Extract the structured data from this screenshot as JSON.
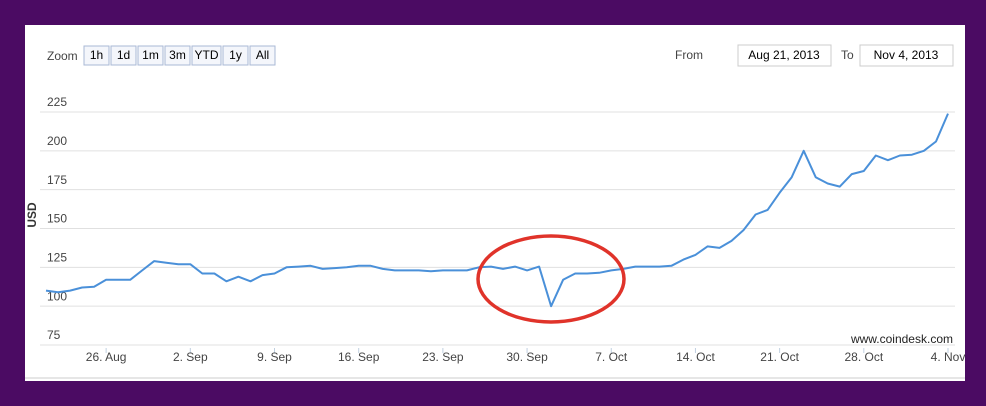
{
  "zoom": {
    "label": "Zoom",
    "buttons": [
      "1h",
      "1d",
      "1m",
      "3m",
      "YTD",
      "1y",
      "All"
    ]
  },
  "range": {
    "from_label": "From",
    "from": "Aug 21, 2013",
    "to_label": "To",
    "to": "Nov 4, 2013"
  },
  "chart_data": {
    "type": "line",
    "y_label": "USD",
    "credit": "www.coindesk.com",
    "x": [
      "2013-08-21",
      "2013-08-22",
      "2013-08-23",
      "2013-08-24",
      "2013-08-25",
      "2013-08-26",
      "2013-08-27",
      "2013-08-28",
      "2013-08-29",
      "2013-08-30",
      "2013-08-31",
      "2013-09-01",
      "2013-09-02",
      "2013-09-03",
      "2013-09-04",
      "2013-09-05",
      "2013-09-06",
      "2013-09-07",
      "2013-09-08",
      "2013-09-09",
      "2013-09-10",
      "2013-09-11",
      "2013-09-12",
      "2013-09-13",
      "2013-09-14",
      "2013-09-15",
      "2013-09-16",
      "2013-09-17",
      "2013-09-18",
      "2013-09-19",
      "2013-09-20",
      "2013-09-21",
      "2013-09-22",
      "2013-09-23",
      "2013-09-24",
      "2013-09-25",
      "2013-09-26",
      "2013-09-27",
      "2013-09-28",
      "2013-09-29",
      "2013-09-30",
      "2013-10-01",
      "2013-10-02",
      "2013-10-03",
      "2013-10-04",
      "2013-10-05",
      "2013-10-06",
      "2013-10-07",
      "2013-10-08",
      "2013-10-09",
      "2013-10-10",
      "2013-10-11",
      "2013-10-12",
      "2013-10-13",
      "2013-10-14",
      "2013-10-15",
      "2013-10-16",
      "2013-10-17",
      "2013-10-18",
      "2013-10-19",
      "2013-10-20",
      "2013-10-21",
      "2013-10-22",
      "2013-10-23",
      "2013-10-24",
      "2013-10-25",
      "2013-10-26",
      "2013-10-27",
      "2013-10-28",
      "2013-10-29",
      "2013-10-30",
      "2013-10-31",
      "2013-11-01",
      "2013-11-02",
      "2013-11-03",
      "2013-11-04"
    ],
    "series": [
      {
        "name": "USD",
        "color": "#4a90d9",
        "values": [
          110,
          109,
          110,
          112,
          112.5,
          117,
          117,
          117,
          123,
          129,
          128,
          127,
          127,
          121,
          121,
          116,
          119,
          116,
          120,
          121,
          125,
          125.5,
          126,
          124,
          124.5,
          125,
          126,
          126,
          124,
          123,
          123,
          123,
          122.5,
          123,
          123,
          123,
          125,
          125.5,
          124,
          125.5,
          123,
          125.5,
          100,
          117,
          121,
          121,
          121.5,
          123,
          124,
          125.5,
          125.5,
          125.5,
          126,
          130,
          133,
          138.5,
          137.5,
          142,
          149,
          159,
          162,
          173,
          183,
          200,
          183,
          179,
          177,
          185,
          187,
          197,
          194,
          197,
          197.5,
          200,
          206,
          224
        ]
      }
    ],
    "xlim": [
      "2013-08-21",
      "2013-11-04"
    ],
    "xticks": [
      {
        "value": "2013-08-26",
        "label": "26. Aug"
      },
      {
        "value": "2013-09-02",
        "label": "2. Sep"
      },
      {
        "value": "2013-09-09",
        "label": "9. Sep"
      },
      {
        "value": "2013-09-16",
        "label": "16. Sep"
      },
      {
        "value": "2013-09-23",
        "label": "23. Sep"
      },
      {
        "value": "2013-09-30",
        "label": "30. Sep"
      },
      {
        "value": "2013-10-07",
        "label": "7. Oct"
      },
      {
        "value": "2013-10-14",
        "label": "14. Oct"
      },
      {
        "value": "2013-10-21",
        "label": "21. Oct"
      },
      {
        "value": "2013-10-28",
        "label": "28. Oct"
      },
      {
        "value": "2013-11-04",
        "label": "4. Nov"
      }
    ],
    "ylim": [
      75,
      225
    ],
    "yticks": [
      75,
      100,
      125,
      150,
      175,
      200,
      225
    ],
    "grid": true
  }
}
